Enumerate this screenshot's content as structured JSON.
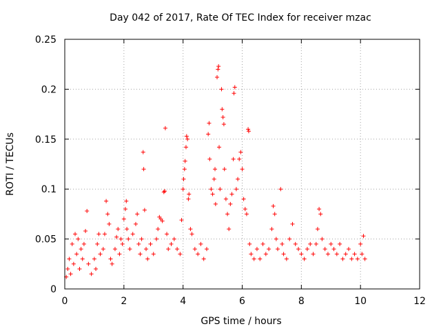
{
  "chart_data": {
    "type": "scatter",
    "title": "Day 042 of 2017, Rate Of TEC Index for receiver mzac",
    "xlabel": "GPS time / hours",
    "ylabel": "ROTI / TECUs",
    "xlim": [
      0,
      12
    ],
    "ylim": [
      0,
      0.25
    ],
    "xticks": [
      0,
      2,
      4,
      6,
      8,
      10,
      12
    ],
    "xtick_labels": [
      "0",
      "2",
      "4",
      "6",
      "8",
      "10",
      "12"
    ],
    "yticks": [
      0,
      0.05,
      0.1,
      0.15,
      0.2,
      0.25
    ],
    "ytick_labels": [
      "0",
      "0.05",
      "0.1",
      "0.15",
      "0.2",
      "0.25"
    ],
    "grid": true,
    "marker": "+",
    "color": "#ff0000",
    "series": [
      {
        "name": "ROTI",
        "points": [
          [
            0.05,
            0.012
          ],
          [
            0.1,
            0.02
          ],
          [
            0.15,
            0.03
          ],
          [
            0.2,
            0.015
          ],
          [
            0.25,
            0.045
          ],
          [
            0.3,
            0.025
          ],
          [
            0.35,
            0.055
          ],
          [
            0.4,
            0.035
          ],
          [
            0.45,
            0.05
          ],
          [
            0.5,
            0.02
          ],
          [
            0.55,
            0.04
          ],
          [
            0.6,
            0.03
          ],
          [
            0.65,
            0.045
          ],
          [
            0.7,
            0.058
          ],
          [
            0.75,
            0.078
          ],
          [
            0.8,
            0.025
          ],
          [
            0.9,
            0.015
          ],
          [
            1.0,
            0.03
          ],
          [
            1.05,
            0.02
          ],
          [
            1.1,
            0.045
          ],
          [
            1.15,
            0.055
          ],
          [
            1.2,
            0.035
          ],
          [
            1.3,
            0.04
          ],
          [
            1.35,
            0.055
          ],
          [
            1.4,
            0.088
          ],
          [
            1.45,
            0.075
          ],
          [
            1.5,
            0.065
          ],
          [
            1.55,
            0.03
          ],
          [
            1.6,
            0.025
          ],
          [
            1.7,
            0.04
          ],
          [
            1.75,
            0.052
          ],
          [
            1.8,
            0.06
          ],
          [
            1.85,
            0.035
          ],
          [
            1.9,
            0.05
          ],
          [
            1.95,
            0.045
          ],
          [
            2.0,
            0.07
          ],
          [
            2.05,
            0.08
          ],
          [
            2.08,
            0.088
          ],
          [
            2.1,
            0.06
          ],
          [
            2.15,
            0.05
          ],
          [
            2.2,
            0.04
          ],
          [
            2.3,
            0.055
          ],
          [
            2.4,
            0.065
          ],
          [
            2.45,
            0.075
          ],
          [
            2.5,
            0.045
          ],
          [
            2.55,
            0.035
          ],
          [
            2.6,
            0.05
          ],
          [
            2.65,
            0.137
          ],
          [
            2.67,
            0.12
          ],
          [
            2.7,
            0.079
          ],
          [
            2.75,
            0.04
          ],
          [
            2.8,
            0.03
          ],
          [
            2.9,
            0.045
          ],
          [
            3.0,
            0.035
          ],
          [
            3.1,
            0.05
          ],
          [
            3.15,
            0.06
          ],
          [
            3.2,
            0.072
          ],
          [
            3.25,
            0.07
          ],
          [
            3.3,
            0.068
          ],
          [
            3.35,
            0.097
          ],
          [
            3.38,
            0.098
          ],
          [
            3.4,
            0.161
          ],
          [
            3.45,
            0.055
          ],
          [
            3.5,
            0.04
          ],
          [
            3.6,
            0.045
          ],
          [
            3.7,
            0.05
          ],
          [
            3.8,
            0.04
          ],
          [
            3.9,
            0.035
          ],
          [
            3.95,
            0.069
          ],
          [
            4.0,
            0.1
          ],
          [
            4.02,
            0.11
          ],
          [
            4.05,
            0.12
          ],
          [
            4.07,
            0.128
          ],
          [
            4.1,
            0.142
          ],
          [
            4.12,
            0.153
          ],
          [
            4.15,
            0.15
          ],
          [
            4.18,
            0.09
          ],
          [
            4.2,
            0.095
          ],
          [
            4.25,
            0.06
          ],
          [
            4.3,
            0.055
          ],
          [
            4.4,
            0.04
          ],
          [
            4.5,
            0.035
          ],
          [
            4.6,
            0.045
          ],
          [
            4.7,
            0.03
          ],
          [
            4.8,
            0.04
          ],
          [
            4.85,
            0.155
          ],
          [
            4.88,
            0.166
          ],
          [
            4.9,
            0.13
          ],
          [
            4.95,
            0.1
          ],
          [
            5.0,
            0.095
          ],
          [
            5.05,
            0.11
          ],
          [
            5.08,
            0.12
          ],
          [
            5.1,
            0.085
          ],
          [
            5.15,
            0.212
          ],
          [
            5.18,
            0.22
          ],
          [
            5.2,
            0.223
          ],
          [
            5.22,
            0.142
          ],
          [
            5.25,
            0.1
          ],
          [
            5.3,
            0.2
          ],
          [
            5.32,
            0.18
          ],
          [
            5.35,
            0.172
          ],
          [
            5.38,
            0.165
          ],
          [
            5.4,
            0.12
          ],
          [
            5.45,
            0.09
          ],
          [
            5.5,
            0.075
          ],
          [
            5.55,
            0.06
          ],
          [
            5.6,
            0.085
          ],
          [
            5.65,
            0.095
          ],
          [
            5.7,
            0.13
          ],
          [
            5.72,
            0.196
          ],
          [
            5.75,
            0.202
          ],
          [
            5.8,
            0.1
          ],
          [
            5.85,
            0.11
          ],
          [
            5.9,
            0.13
          ],
          [
            5.95,
            0.137
          ],
          [
            6.0,
            0.12
          ],
          [
            6.05,
            0.09
          ],
          [
            6.1,
            0.08
          ],
          [
            6.15,
            0.075
          ],
          [
            6.2,
            0.16
          ],
          [
            6.22,
            0.158
          ],
          [
            6.25,
            0.045
          ],
          [
            6.3,
            0.035
          ],
          [
            6.4,
            0.03
          ],
          [
            6.5,
            0.04
          ],
          [
            6.6,
            0.03
          ],
          [
            6.7,
            0.045
          ],
          [
            6.8,
            0.035
          ],
          [
            6.9,
            0.04
          ],
          [
            7.0,
            0.06
          ],
          [
            7.05,
            0.083
          ],
          [
            7.1,
            0.075
          ],
          [
            7.15,
            0.05
          ],
          [
            7.2,
            0.04
          ],
          [
            7.3,
            0.1
          ],
          [
            7.35,
            0.045
          ],
          [
            7.4,
            0.035
          ],
          [
            7.5,
            0.03
          ],
          [
            7.6,
            0.05
          ],
          [
            7.7,
            0.065
          ],
          [
            7.8,
            0.045
          ],
          [
            7.9,
            0.04
          ],
          [
            8.0,
            0.035
          ],
          [
            8.1,
            0.03
          ],
          [
            8.2,
            0.04
          ],
          [
            8.3,
            0.045
          ],
          [
            8.4,
            0.035
          ],
          [
            8.5,
            0.045
          ],
          [
            8.55,
            0.06
          ],
          [
            8.6,
            0.08
          ],
          [
            8.65,
            0.075
          ],
          [
            8.7,
            0.05
          ],
          [
            8.8,
            0.04
          ],
          [
            8.9,
            0.035
          ],
          [
            9.0,
            0.045
          ],
          [
            9.1,
            0.04
          ],
          [
            9.2,
            0.035
          ],
          [
            9.3,
            0.045
          ],
          [
            9.4,
            0.03
          ],
          [
            9.5,
            0.035
          ],
          [
            9.6,
            0.04
          ],
          [
            9.7,
            0.03
          ],
          [
            9.8,
            0.035
          ],
          [
            9.9,
            0.03
          ],
          [
            10.0,
            0.045
          ],
          [
            10.05,
            0.035
          ],
          [
            10.1,
            0.053
          ],
          [
            10.15,
            0.03
          ]
        ]
      }
    ]
  }
}
